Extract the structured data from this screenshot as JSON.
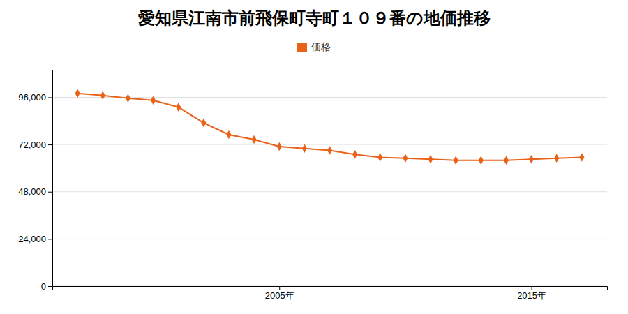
{
  "chart_data": {
    "type": "line",
    "title": "愛知県江南市前飛保町寺町１０９番の地価推移",
    "x": [
      1997,
      1998,
      1999,
      2000,
      2001,
      2002,
      2003,
      2004,
      2005,
      2006,
      2007,
      2008,
      2009,
      2010,
      2011,
      2012,
      2013,
      2014,
      2015,
      2016,
      2017
    ],
    "series": [
      {
        "name": "価格",
        "color": "#e8621a",
        "marker": "diamond",
        "values": [
          98000,
          97000,
          95500,
          94500,
          91000,
          83000,
          77000,
          74500,
          71000,
          70000,
          69000,
          67000,
          65500,
          65000,
          64500,
          64000,
          64000,
          64000,
          64500,
          65000,
          65500
        ]
      }
    ],
    "xlim": [
      1996,
      2018
    ],
    "xticks": [
      {
        "value": 2005,
        "label": "2005年"
      },
      {
        "value": 2015,
        "label": "2015年"
      }
    ],
    "ylim": [
      0,
      110000
    ],
    "yticks": [
      0,
      {
        "value": 24000,
        "label": "24,000"
      },
      {
        "value": 48000,
        "label": "48,000"
      },
      {
        "value": 72000,
        "label": "72,000"
      },
      {
        "value": 96000,
        "label": "96,000"
      }
    ],
    "grid": "y",
    "legend": "top"
  }
}
